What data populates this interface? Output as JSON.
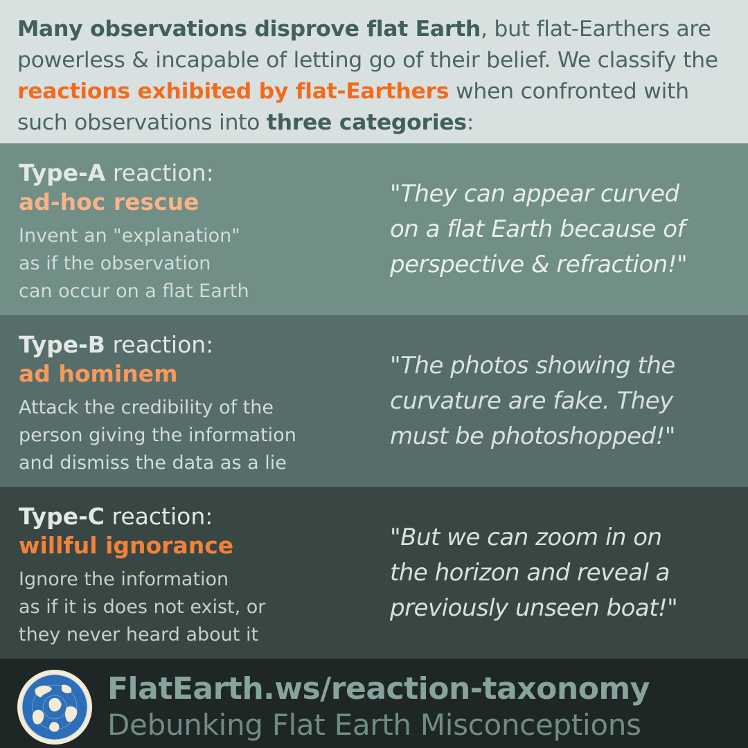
{
  "intro": {
    "bold1": "Many observations disprove flat Earth",
    "text1": ", but flat-Earthers are powerless & incapable of letting go of their belief. We classify the ",
    "orange": "reactions exhibited by flat-Earthers",
    "text2": " when confronted with such observations into ",
    "bold2": "three categories",
    "text3": ":"
  },
  "reactions": [
    {
      "type": "Type-A",
      "suffix": " reaction:",
      "label": "ad-hoc rescue",
      "description": "Invent an \"explanation\"\nas if the observation\ncan occur on a flat Earth",
      "quote": "\"They can appear curved\non a flat Earth because of\nperspective & refraction!\""
    },
    {
      "type": "Type-B",
      "suffix": " reaction:",
      "label": "ad hominem",
      "description": "Attack the credibility of the\nperson giving the information\nand dismiss the data as a lie",
      "quote": "\"The photos showing the\ncurvature are fake. They\nmust be photoshopped!\""
    },
    {
      "type": "Type-C",
      "suffix": " reaction:",
      "label": "willful ignorance",
      "description": "Ignore the information\nas if it is does not exist, or\nthey never heard about it",
      "quote": "\"But we can zoom in on\nthe horizon and reveal a\npreviously unseen boat!\""
    }
  ],
  "footer": {
    "url": "FlatEarth.ws/reaction-taxonomy",
    "tagline": "Debunking Flat Earth Misconceptions",
    "logo_icon": "globe-icon"
  },
  "colors": {
    "accent_orange": "#f26b1d",
    "band_a": "#718e87",
    "band_b": "#566d69",
    "band_c": "#384744",
    "footer_bg": "#1e2725"
  }
}
